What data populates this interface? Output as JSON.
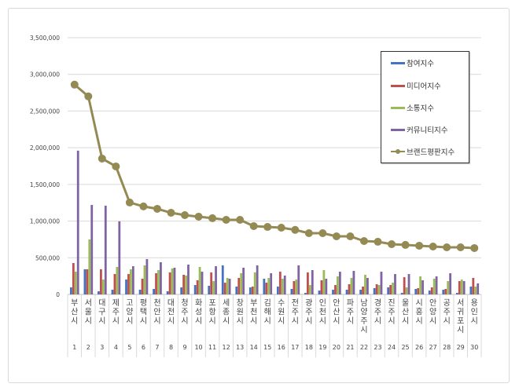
{
  "chart_data": {
    "type": "bar+line",
    "title": "",
    "ylim": [
      0,
      3500000
    ],
    "yticks": [
      "0",
      "500,000",
      "1,000,000",
      "1,500,000",
      "2,000,000",
      "2,500,000",
      "3,000,000",
      "3,500,000"
    ],
    "ytick_values": [
      0,
      500000,
      1000000,
      1500000,
      2000000,
      2500000,
      3000000,
      3500000
    ],
    "grid": true,
    "legend_position": "top-right",
    "categories": [
      "부산시",
      "서울시",
      "대구시",
      "제주시",
      "고양시",
      "평택시",
      "천안시",
      "대전시",
      "청주시",
      "화성시",
      "포항시",
      "세종시",
      "창원시",
      "부천시",
      "김해시",
      "수원시",
      "전주시",
      "광주시",
      "인천시",
      "안산시",
      "파주시",
      "남양주시",
      "경주시",
      "진주시",
      "울산시",
      "시흥시",
      "안양시",
      "공주시",
      "서귀포시",
      "용인시"
    ],
    "ranks": [
      "1",
      "2",
      "3",
      "4",
      "5",
      "6",
      "7",
      "8",
      "9",
      "10",
      "11",
      "12",
      "13",
      "14",
      "15",
      "16",
      "17",
      "18",
      "19",
      "20",
      "21",
      "22",
      "23",
      "24",
      "25",
      "26",
      "27",
      "28",
      "29",
      "30"
    ],
    "series": [
      {
        "name": "참여지수",
        "type": "bar",
        "color": "#4472c4",
        "values": [
          96000,
          343000,
          43000,
          64000,
          203000,
          64000,
          75000,
          43000,
          96000,
          128000,
          118000,
          396000,
          107000,
          96000,
          214000,
          107000,
          75000,
          21000,
          53000,
          64000,
          64000,
          64000,
          86000,
          96000,
          21000,
          75000,
          53000,
          64000,
          21000,
          107000
        ]
      },
      {
        "name": "미디어지수",
        "type": "bar",
        "color": "#c0504d",
        "values": [
          428000,
          343000,
          343000,
          278000,
          278000,
          214000,
          289000,
          300000,
          268000,
          193000,
          300000,
          160000,
          225000,
          107000,
          160000,
          310000,
          182000,
          300000,
          193000,
          128000,
          139000,
          107000,
          139000,
          128000,
          235000,
          86000,
          96000,
          75000,
          182000,
          225000
        ]
      },
      {
        "name": "소통지수",
        "type": "bar",
        "color": "#9bbb59",
        "values": [
          310000,
          750000,
          203000,
          375000,
          343000,
          396000,
          332000,
          353000,
          257000,
          375000,
          182000,
          225000,
          289000,
          300000,
          225000,
          214000,
          203000,
          128000,
          332000,
          246000,
          225000,
          268000,
          128000,
          160000,
          96000,
          246000,
          214000,
          182000,
          203000,
          107000
        ]
      },
      {
        "name": "커뮤니티지수",
        "type": "bar",
        "color": "#8064a2",
        "values": [
          1960000,
          1220000,
          1210000,
          996000,
          385000,
          482000,
          439000,
          364000,
          407000,
          310000,
          385000,
          214000,
          364000,
          396000,
          289000,
          257000,
          396000,
          332000,
          214000,
          310000,
          321000,
          225000,
          310000,
          278000,
          278000,
          193000,
          246000,
          289000,
          182000,
          150000
        ]
      },
      {
        "name": "브랜드평판지수",
        "type": "line",
        "color": "#948a54",
        "values": [
          2860000,
          2700000,
          1852000,
          1745000,
          1253000,
          1200000,
          1167000,
          1113000,
          1081000,
          1060000,
          1039000,
          1017000,
          1017000,
          931000,
          920000,
          910000,
          880000,
          835000,
          835000,
          792000,
          792000,
          728000,
          718000,
          685000,
          675000,
          664000,
          653000,
          642000,
          642000,
          632000
        ]
      }
    ]
  }
}
